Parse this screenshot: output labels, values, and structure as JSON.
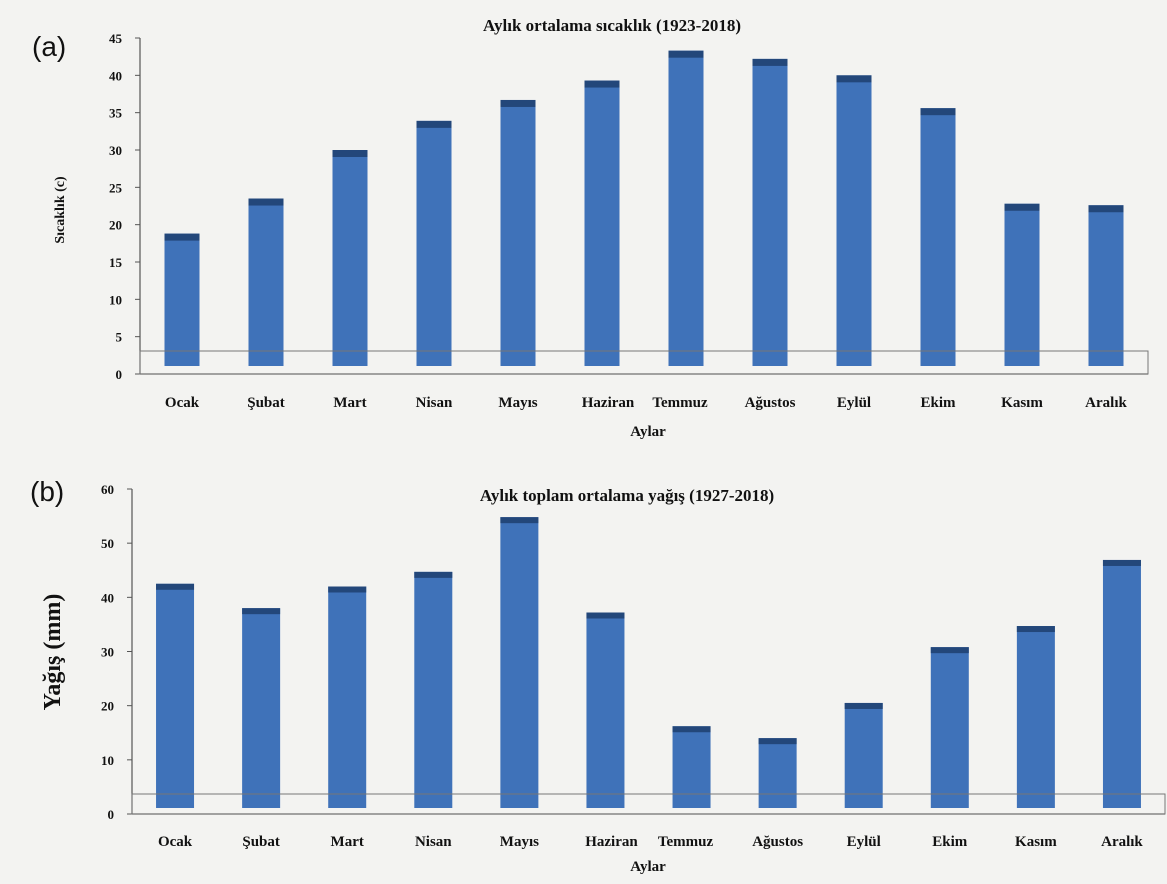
{
  "chart_data": [
    {
      "panel": "(a)",
      "type": "bar",
      "title": "Aylık ortalama sıcaklık (1923-2018)",
      "xlabel": "Aylar",
      "ylabel": "Sıcaklık  (c)",
      "ylim": [
        0,
        45
      ],
      "yticks": [
        "0",
        "5",
        "10",
        "15",
        "20",
        "25",
        "30",
        "35",
        "40",
        "45"
      ],
      "categories": [
        "Ocak",
        "Şubat",
        "Mart",
        "Nisan",
        "Mayıs",
        "Haziran",
        "Temmuz",
        "Ağustos",
        "Eylül",
        "Ekim",
        "Kasım",
        "Aralık"
      ],
      "values": [
        18.8,
        23.5,
        30.0,
        33.9,
        36.7,
        39.3,
        43.3,
        42.2,
        40.0,
        35.6,
        22.8,
        22.6
      ],
      "grid": false,
      "legend": "none",
      "bar_color": "#3f72b9",
      "bar_cap_color": "#23477a"
    },
    {
      "panel": "(b)",
      "type": "bar",
      "title": "Aylık toplam ortalama yağış (1927-2018)",
      "xlabel": "Aylar",
      "ylabel": "Yağış (mm)",
      "ylim": [
        0,
        60
      ],
      "yticks": [
        "0",
        "10",
        "20",
        "30",
        "40",
        "50",
        "60"
      ],
      "categories": [
        "Ocak",
        "Şubat",
        "Mart",
        "Nisan",
        "Mayıs",
        "Haziran",
        "Temmuz",
        "Ağustos",
        "Eylül",
        "Ekim",
        "Kasım",
        "Aralık"
      ],
      "values": [
        42.5,
        38.0,
        42.0,
        44.7,
        54.8,
        37.2,
        16.2,
        14.0,
        20.5,
        30.8,
        34.7,
        46.9
      ],
      "grid": false,
      "legend": "none",
      "bar_color": "#3f72b9",
      "bar_cap_color": "#23477a"
    }
  ]
}
